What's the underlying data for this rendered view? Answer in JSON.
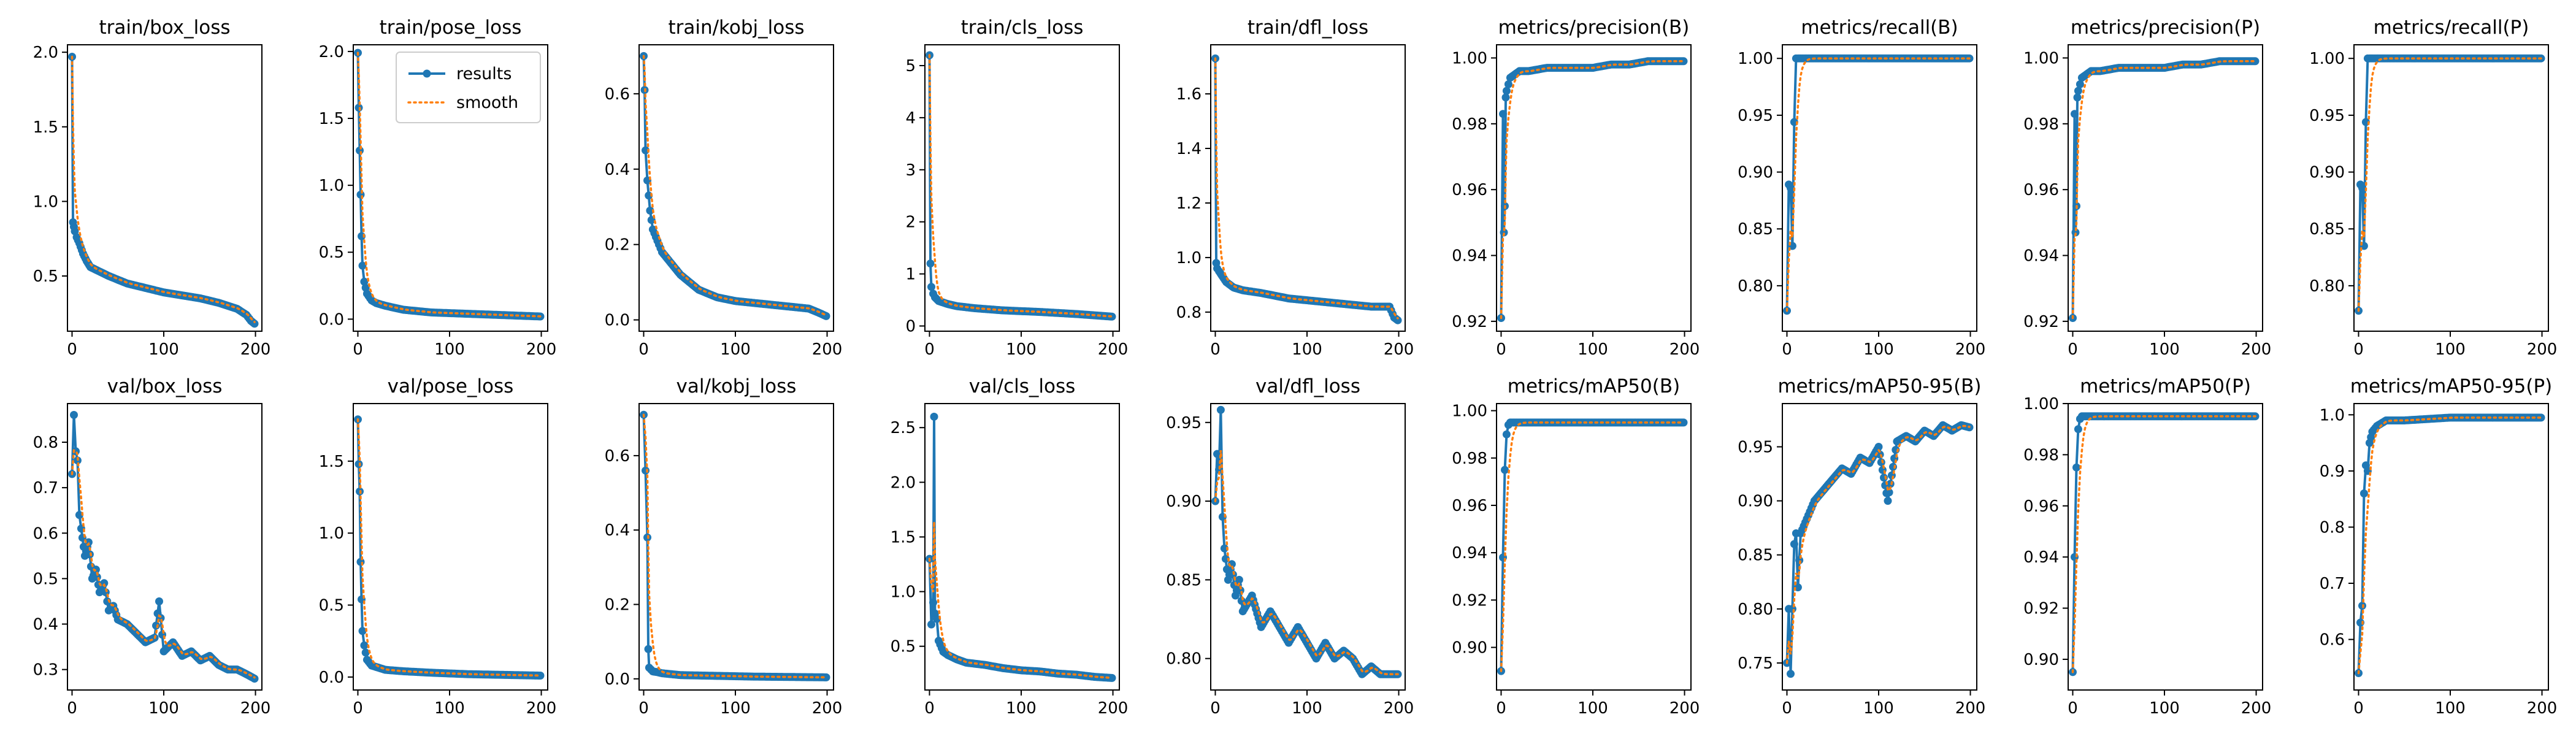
{
  "chart_data": {
    "type": "line",
    "legend": {
      "placement": "top-right",
      "panel_index": 1,
      "entries": [
        "results",
        "smooth"
      ]
    },
    "colors": {
      "results": "#1f77b4",
      "smooth": "#ff7f0e"
    },
    "grid": false,
    "panels": [
      {
        "title": "train/box_loss",
        "xlim": [
          -5,
          207
        ],
        "ylim": [
          0.13,
          2.05
        ],
        "xticks": [
          0,
          100,
          200
        ],
        "yticks": [
          0.5,
          1.0,
          1.5,
          2.0
        ],
        "ytick_labels": [
          "0.5",
          "1.0",
          "1.5",
          "2.0"
        ],
        "x": [
          0,
          1,
          2,
          3,
          5,
          8,
          12,
          16,
          20,
          30,
          40,
          60,
          80,
          100,
          120,
          140,
          160,
          180,
          190,
          195,
          199
        ],
        "y": [
          1.97,
          0.86,
          0.83,
          0.8,
          0.76,
          0.72,
          0.65,
          0.6,
          0.56,
          0.53,
          0.5,
          0.45,
          0.42,
          0.39,
          0.37,
          0.35,
          0.32,
          0.28,
          0.24,
          0.2,
          0.18
        ]
      },
      {
        "title": "train/pose_loss",
        "xlim": [
          -5,
          207
        ],
        "ylim": [
          -0.09,
          2.05
        ],
        "xticks": [
          0,
          100,
          200
        ],
        "yticks": [
          0.0,
          0.5,
          1.0,
          1.5,
          2.0
        ],
        "ytick_labels": [
          "0.0",
          "0.5",
          "1.0",
          "1.5",
          "2.0"
        ],
        "x": [
          0,
          1,
          2,
          3,
          4,
          5,
          7,
          10,
          15,
          20,
          30,
          50,
          80,
          120,
          160,
          199
        ],
        "y": [
          1.99,
          1.58,
          1.26,
          0.93,
          0.62,
          0.4,
          0.28,
          0.19,
          0.14,
          0.12,
          0.1,
          0.07,
          0.05,
          0.04,
          0.03,
          0.02
        ]
      },
      {
        "title": "train/kobj_loss",
        "xlim": [
          -5,
          207
        ],
        "ylim": [
          -0.03,
          0.73
        ],
        "xticks": [
          0,
          100,
          200
        ],
        "yticks": [
          0.0,
          0.2,
          0.4,
          0.6
        ],
        "ytick_labels": [
          "0.0",
          "0.2",
          "0.4",
          "0.6"
        ],
        "x": [
          0,
          1,
          2,
          4,
          7,
          10,
          15,
          20,
          30,
          40,
          50,
          60,
          80,
          100,
          120,
          140,
          160,
          180,
          190,
          199
        ],
        "y": [
          0.7,
          0.61,
          0.45,
          0.37,
          0.29,
          0.24,
          0.21,
          0.18,
          0.15,
          0.12,
          0.1,
          0.08,
          0.06,
          0.05,
          0.045,
          0.04,
          0.035,
          0.03,
          0.02,
          0.01
        ]
      },
      {
        "title": "train/cls_loss",
        "xlim": [
          -5,
          207
        ],
        "ylim": [
          -0.1,
          5.4
        ],
        "xticks": [
          0,
          100,
          200
        ],
        "yticks": [
          0,
          1,
          2,
          3,
          4,
          5
        ],
        "ytick_labels": [
          "0",
          "1",
          "2",
          "3",
          "4",
          "5"
        ],
        "x": [
          0,
          1,
          2,
          4,
          6,
          10,
          15,
          20,
          30,
          50,
          80,
          120,
          160,
          199
        ],
        "y": [
          5.2,
          1.2,
          0.75,
          0.62,
          0.55,
          0.48,
          0.45,
          0.42,
          0.38,
          0.34,
          0.3,
          0.27,
          0.23,
          0.18
        ]
      },
      {
        "title": "train/dfl_loss",
        "xlim": [
          -5,
          207
        ],
        "ylim": [
          0.73,
          1.78
        ],
        "xticks": [
          0,
          100,
          200
        ],
        "yticks": [
          0.8,
          1.0,
          1.2,
          1.4,
          1.6
        ],
        "ytick_labels": [
          "0.8",
          "1.0",
          "1.2",
          "1.4",
          "1.6"
        ],
        "x": [
          0,
          1,
          2,
          4,
          8,
          12,
          20,
          30,
          50,
          80,
          110,
          140,
          170,
          190,
          195,
          199
        ],
        "y": [
          1.73,
          0.98,
          0.96,
          0.95,
          0.93,
          0.91,
          0.89,
          0.88,
          0.87,
          0.85,
          0.84,
          0.83,
          0.82,
          0.82,
          0.78,
          0.77
        ]
      },
      {
        "title": "metrics/precision(B)",
        "xlim": [
          -5,
          207
        ],
        "ylim": [
          0.917,
          1.004
        ],
        "xticks": [
          0,
          100,
          200
        ],
        "yticks": [
          0.92,
          0.94,
          0.96,
          0.98,
          1.0
        ],
        "ytick_labels": [
          "0.92",
          "0.94",
          "0.96",
          "0.98",
          "1.00"
        ],
        "x": [
          0,
          2,
          3,
          4,
          5,
          6,
          8,
          10,
          15,
          20,
          30,
          50,
          80,
          100,
          120,
          140,
          160,
          180,
          199
        ],
        "y": [
          0.921,
          0.983,
          0.947,
          0.955,
          0.988,
          0.99,
          0.992,
          0.994,
          0.995,
          0.996,
          0.996,
          0.997,
          0.997,
          0.997,
          0.998,
          0.998,
          0.999,
          0.999,
          0.999
        ]
      },
      {
        "title": "metrics/recall(B)",
        "xlim": [
          -5,
          207
        ],
        "ylim": [
          0.76,
          1.012
        ],
        "xticks": [
          0,
          100,
          200
        ],
        "yticks": [
          0.8,
          0.85,
          0.9,
          0.95,
          1.0
        ],
        "ytick_labels": [
          "0.80",
          "0.85",
          "0.90",
          "0.95",
          "1.00"
        ],
        "x": [
          0,
          2,
          4,
          6,
          8,
          10,
          12,
          15,
          20,
          50,
          100,
          150,
          199
        ],
        "y": [
          0.778,
          0.889,
          0.886,
          0.835,
          0.944,
          1.0,
          1.0,
          1.0,
          1.0,
          1.0,
          1.0,
          1.0,
          1.0
        ]
      },
      {
        "title": "metrics/precision(P)",
        "xlim": [
          -5,
          207
        ],
        "ylim": [
          0.917,
          1.004
        ],
        "xticks": [
          0,
          100,
          200
        ],
        "yticks": [
          0.92,
          0.94,
          0.96,
          0.98,
          1.0
        ],
        "ytick_labels": [
          "0.92",
          "0.94",
          "0.96",
          "0.98",
          "1.00"
        ],
        "x": [
          0,
          2,
          3,
          4,
          5,
          6,
          8,
          10,
          15,
          20,
          30,
          50,
          80,
          100,
          120,
          140,
          160,
          180,
          199
        ],
        "y": [
          0.921,
          0.983,
          0.947,
          0.955,
          0.988,
          0.99,
          0.992,
          0.994,
          0.995,
          0.996,
          0.996,
          0.997,
          0.997,
          0.997,
          0.998,
          0.998,
          0.999,
          0.999,
          0.999
        ]
      },
      {
        "title": "metrics/recall(P)",
        "xlim": [
          -5,
          207
        ],
        "ylim": [
          0.76,
          1.012
        ],
        "xticks": [
          0,
          100,
          200
        ],
        "yticks": [
          0.8,
          0.85,
          0.9,
          0.95,
          1.0
        ],
        "ytick_labels": [
          "0.80",
          "0.85",
          "0.90",
          "0.95",
          "1.00"
        ],
        "x": [
          0,
          2,
          4,
          6,
          8,
          10,
          12,
          15,
          20,
          50,
          100,
          150,
          199
        ],
        "y": [
          0.778,
          0.889,
          0.886,
          0.835,
          0.944,
          1.0,
          1.0,
          1.0,
          1.0,
          1.0,
          1.0,
          1.0,
          1.0
        ]
      },
      {
        "title": "val/box_loss",
        "xlim": [
          -5,
          207
        ],
        "ylim": [
          0.255,
          0.885
        ],
        "xticks": [
          0,
          100,
          200
        ],
        "yticks": [
          0.3,
          0.4,
          0.5,
          0.6,
          0.7,
          0.8
        ],
        "ytick_labels": [
          "0.3",
          "0.4",
          "0.5",
          "0.6",
          "0.7",
          "0.8"
        ],
        "x": [
          0,
          2,
          4,
          6,
          8,
          10,
          14,
          18,
          22,
          26,
          30,
          35,
          40,
          45,
          50,
          60,
          70,
          80,
          90,
          95,
          100,
          110,
          120,
          130,
          140,
          150,
          160,
          170,
          180,
          190,
          199
        ],
        "y": [
          0.73,
          0.86,
          0.78,
          0.76,
          0.64,
          0.61,
          0.55,
          0.58,
          0.5,
          0.52,
          0.47,
          0.49,
          0.43,
          0.44,
          0.41,
          0.4,
          0.38,
          0.36,
          0.37,
          0.45,
          0.34,
          0.36,
          0.33,
          0.34,
          0.32,
          0.33,
          0.31,
          0.3,
          0.3,
          0.29,
          0.28
        ]
      },
      {
        "title": "val/pose_loss",
        "xlim": [
          -5,
          207
        ],
        "ylim": [
          -0.09,
          1.9
        ],
        "xticks": [
          0,
          100,
          200
        ],
        "yticks": [
          0.0,
          0.5,
          1.0,
          1.5
        ],
        "ytick_labels": [
          "0.0",
          "0.5",
          "1.0",
          "1.5"
        ],
        "x": [
          0,
          1,
          2,
          3,
          4,
          5,
          7,
          10,
          15,
          20,
          30,
          50,
          80,
          120,
          160,
          199
        ],
        "y": [
          1.79,
          1.48,
          1.29,
          0.8,
          0.54,
          0.32,
          0.22,
          0.12,
          0.08,
          0.07,
          0.05,
          0.04,
          0.03,
          0.02,
          0.015,
          0.01
        ]
      },
      {
        "title": "val/kobj_loss",
        "xlim": [
          -5,
          207
        ],
        "ylim": [
          -0.03,
          0.74
        ],
        "xticks": [
          0,
          100,
          200
        ],
        "yticks": [
          0.0,
          0.2,
          0.4,
          0.6
        ],
        "ytick_labels": [
          "0.0",
          "0.2",
          "0.4",
          "0.6"
        ],
        "x": [
          0,
          2,
          4,
          5,
          6,
          8,
          10,
          15,
          20,
          40,
          80,
          120,
          160,
          199
        ],
        "y": [
          0.71,
          0.56,
          0.38,
          0.08,
          0.03,
          0.025,
          0.02,
          0.018,
          0.015,
          0.01,
          0.008,
          0.006,
          0.005,
          0.004
        ]
      },
      {
        "title": "val/cls_loss",
        "xlim": [
          -5,
          207
        ],
        "ylim": [
          0.1,
          2.72
        ],
        "xticks": [
          0,
          100,
          200
        ],
        "yticks": [
          0.5,
          1.0,
          1.5,
          2.0,
          2.5
        ],
        "ytick_labels": [
          "0.5",
          "1.0",
          "1.5",
          "2.0",
          "2.5"
        ],
        "x": [
          0,
          2,
          4,
          5,
          6,
          8,
          10,
          15,
          20,
          30,
          40,
          60,
          80,
          100,
          120,
          140,
          160,
          180,
          199
        ],
        "y": [
          1.3,
          0.7,
          0.9,
          2.6,
          0.8,
          0.75,
          0.55,
          0.45,
          0.42,
          0.38,
          0.35,
          0.33,
          0.3,
          0.28,
          0.27,
          0.25,
          0.24,
          0.22,
          0.21
        ]
      },
      {
        "title": "val/dfl_loss",
        "xlim": [
          -5,
          207
        ],
        "ylim": [
          0.78,
          0.962
        ],
        "xticks": [
          0,
          100,
          200
        ],
        "yticks": [
          0.8,
          0.85,
          0.9,
          0.95
        ],
        "ytick_labels": [
          "0.80",
          "0.85",
          "0.90",
          "0.95"
        ],
        "x": [
          0,
          2,
          4,
          6,
          8,
          10,
          14,
          18,
          22,
          26,
          30,
          40,
          50,
          60,
          70,
          80,
          90,
          100,
          110,
          120,
          130,
          140,
          150,
          160,
          170,
          180,
          190,
          199
        ],
        "y": [
          0.9,
          0.93,
          0.92,
          0.958,
          0.89,
          0.87,
          0.85,
          0.86,
          0.84,
          0.85,
          0.83,
          0.84,
          0.82,
          0.83,
          0.82,
          0.81,
          0.82,
          0.81,
          0.8,
          0.81,
          0.8,
          0.805,
          0.8,
          0.79,
          0.795,
          0.79,
          0.79,
          0.79
        ]
      },
      {
        "title": "metrics/mAP50(B)",
        "xlim": [
          -5,
          207
        ],
        "ylim": [
          0.882,
          1.003
        ],
        "xticks": [
          0,
          100,
          200
        ],
        "yticks": [
          0.9,
          0.92,
          0.94,
          0.96,
          0.98,
          1.0
        ],
        "ytick_labels": [
          "0.90",
          "0.92",
          "0.94",
          "0.96",
          "0.98",
          "1.00"
        ],
        "x": [
          0,
          2,
          4,
          6,
          8,
          10,
          15,
          20,
          50,
          100,
          150,
          199
        ],
        "y": [
          0.89,
          0.938,
          0.975,
          0.99,
          0.994,
          0.995,
          0.995,
          0.995,
          0.995,
          0.995,
          0.995,
          0.995
        ]
      },
      {
        "title": "metrics/mAP50-95(B)",
        "xlim": [
          -5,
          207
        ],
        "ylim": [
          0.725,
          0.99
        ],
        "xticks": [
          0,
          100,
          200
        ],
        "yticks": [
          0.75,
          0.8,
          0.85,
          0.9,
          0.95
        ],
        "ytick_labels": [
          "0.75",
          "0.80",
          "0.85",
          "0.90",
          "0.95"
        ],
        "x": [
          0,
          2,
          4,
          6,
          8,
          10,
          12,
          15,
          20,
          25,
          30,
          40,
          50,
          60,
          70,
          80,
          90,
          100,
          110,
          120,
          130,
          140,
          150,
          160,
          170,
          180,
          190,
          199
        ],
        "y": [
          0.75,
          0.8,
          0.74,
          0.8,
          0.86,
          0.87,
          0.82,
          0.87,
          0.88,
          0.89,
          0.9,
          0.91,
          0.92,
          0.93,
          0.925,
          0.94,
          0.935,
          0.95,
          0.9,
          0.955,
          0.96,
          0.955,
          0.965,
          0.96,
          0.97,
          0.965,
          0.97,
          0.968
        ]
      },
      {
        "title": "metrics/mAP50(P)",
        "xlim": [
          -5,
          207
        ],
        "ylim": [
          0.888,
          1.0
        ],
        "xticks": [
          0,
          100,
          200
        ],
        "yticks": [
          0.9,
          0.92,
          0.94,
          0.96,
          0.98,
          1.0
        ],
        "ytick_labels": [
          "0.90",
          "0.92",
          "0.94",
          "0.96",
          "0.98",
          "1.00"
        ],
        "x": [
          0,
          2,
          4,
          6,
          8,
          10,
          15,
          20,
          50,
          100,
          150,
          199
        ],
        "y": [
          0.895,
          0.94,
          0.975,
          0.99,
          0.994,
          0.995,
          0.995,
          0.995,
          0.995,
          0.995,
          0.995,
          0.995
        ]
      },
      {
        "title": "metrics/mAP50-95(P)",
        "xlim": [
          -5,
          207
        ],
        "ylim": [
          0.51,
          1.02
        ],
        "xticks": [
          0,
          100,
          200
        ],
        "yticks": [
          0.6,
          0.7,
          0.8,
          0.9,
          1.0
        ],
        "ytick_labels": [
          "0.6",
          "0.7",
          "0.8",
          "0.9",
          "1.0"
        ],
        "x": [
          0,
          2,
          4,
          6,
          8,
          10,
          12,
          15,
          20,
          30,
          50,
          100,
          150,
          199
        ],
        "y": [
          0.54,
          0.63,
          0.66,
          0.86,
          0.91,
          0.9,
          0.95,
          0.97,
          0.98,
          0.99,
          0.99,
          0.995,
          0.995,
          0.995
        ]
      }
    ]
  }
}
